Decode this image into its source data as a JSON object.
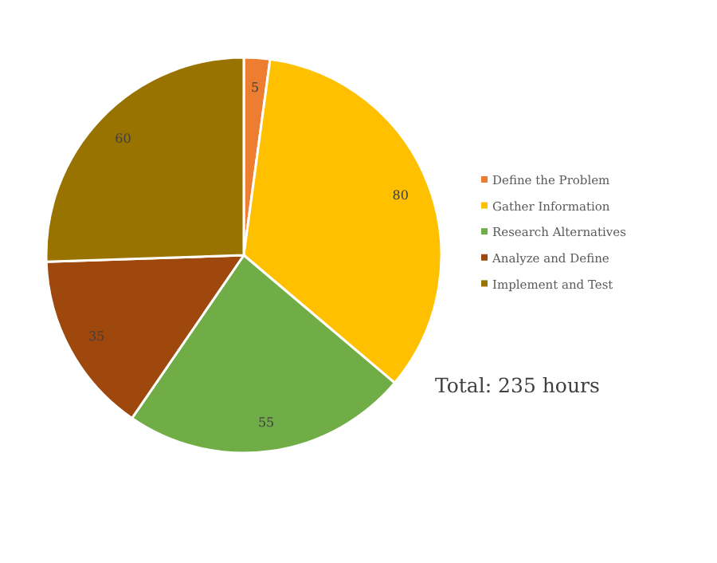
{
  "chart_data": {
    "type": "pie",
    "categories": [
      "Define the Problem",
      "Gather Information",
      "Research Alternatives",
      "Analyze and Define",
      "Implement and Test"
    ],
    "values": [
      5,
      80,
      55,
      35,
      60
    ],
    "colors": [
      "#ed7d31",
      "#ffc000",
      "#70ad47",
      "#9e480e",
      "#997300"
    ],
    "data_labels": true,
    "legend": "right",
    "annotations": [
      "Total: 235 hours"
    ]
  }
}
